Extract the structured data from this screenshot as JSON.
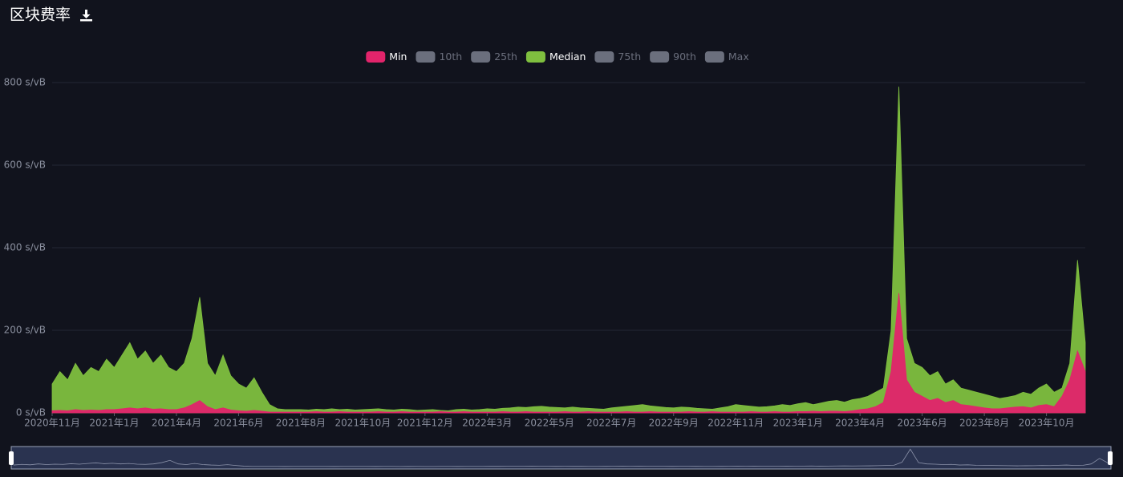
{
  "chart_data": {
    "type": "area",
    "title": "区块费率",
    "categories": [
      "2020年11月",
      null,
      null,
      null,
      null,
      null,
      null,
      null,
      "2021年1月",
      null,
      null,
      null,
      null,
      null,
      null,
      null,
      "2021年4月",
      null,
      null,
      null,
      null,
      null,
      null,
      null,
      "2021年6月",
      null,
      null,
      null,
      null,
      null,
      null,
      null,
      "2021年8月",
      null,
      null,
      null,
      null,
      null,
      null,
      null,
      "2021年10月",
      null,
      null,
      null,
      null,
      null,
      null,
      null,
      "2021年12月",
      null,
      null,
      null,
      null,
      null,
      null,
      null,
      "2022年3月",
      null,
      null,
      null,
      null,
      null,
      null,
      null,
      "2022年5月",
      null,
      null,
      null,
      null,
      null,
      null,
      null,
      "2022年7月",
      null,
      null,
      null,
      null,
      null,
      null,
      null,
      "2022年9月",
      null,
      null,
      null,
      null,
      null,
      null,
      null,
      "2022年11月",
      null,
      null,
      null,
      null,
      null,
      null,
      null,
      "2023年1月",
      null,
      null,
      null,
      null,
      null,
      null,
      null,
      "2023年4月",
      null,
      null,
      null,
      null,
      null,
      null,
      null,
      "2023年6月",
      null,
      null,
      null,
      null,
      null,
      null,
      null,
      "2023年8月",
      null,
      null,
      null,
      null,
      null,
      null,
      null,
      "2023年10月",
      null,
      null,
      null,
      null,
      null
    ],
    "series": [
      {
        "name": "Min",
        "color": "#e2246b",
        "active": true,
        "values": [
          5,
          6,
          5,
          8,
          6,
          7,
          6,
          8,
          8,
          10,
          12,
          10,
          12,
          9,
          10,
          8,
          8,
          12,
          20,
          30,
          15,
          8,
          12,
          7,
          5,
          4,
          6,
          4,
          2,
          2,
          2,
          2,
          2,
          2,
          3,
          2,
          2,
          3,
          2,
          2,
          2,
          2,
          3,
          2,
          2,
          3,
          2,
          2,
          2,
          2,
          3,
          2,
          2,
          3,
          2,
          2,
          2,
          2,
          3,
          2,
          2,
          3,
          2,
          2,
          2,
          2,
          3,
          2,
          2,
          3,
          2,
          2,
          2,
          2,
          3,
          2,
          2,
          3,
          2,
          2,
          2,
          2,
          3,
          2,
          2,
          3,
          2,
          2,
          2,
          2,
          3,
          2,
          2,
          3,
          2,
          2,
          3,
          3,
          4,
          3,
          4,
          4,
          3,
          5,
          8,
          10,
          15,
          25,
          100,
          290,
          80,
          50,
          40,
          30,
          35,
          25,
          30,
          20,
          18,
          15,
          12,
          10,
          10,
          12,
          14,
          15,
          12,
          18,
          20,
          15,
          40,
          80,
          150,
          100
        ]
      },
      {
        "name": "10th",
        "color": "#6b6f7d",
        "active": false
      },
      {
        "name": "25th",
        "color": "#6b6f7d",
        "active": false
      },
      {
        "name": "Median",
        "color": "#7fbf3f",
        "active": true,
        "values": [
          70,
          100,
          80,
          120,
          90,
          110,
          100,
          130,
          110,
          140,
          170,
          130,
          150,
          120,
          140,
          110,
          100,
          120,
          180,
          280,
          120,
          90,
          140,
          90,
          70,
          60,
          85,
          50,
          20,
          10,
          8,
          8,
          8,
          7,
          9,
          8,
          10,
          8,
          9,
          7,
          8,
          9,
          10,
          8,
          7,
          9,
          8,
          6,
          7,
          8,
          6,
          5,
          8,
          9,
          7,
          8,
          10,
          9,
          11,
          12,
          14,
          13,
          15,
          16,
          14,
          13,
          12,
          14,
          12,
          11,
          10,
          9,
          12,
          14,
          16,
          18,
          20,
          17,
          15,
          13,
          12,
          14,
          13,
          11,
          10,
          9,
          12,
          15,
          20,
          18,
          16,
          14,
          15,
          17,
          20,
          18,
          22,
          25,
          20,
          24,
          28,
          30,
          26,
          32,
          35,
          40,
          50,
          60,
          200,
          790,
          180,
          120,
          110,
          90,
          100,
          70,
          80,
          60,
          55,
          50,
          45,
          40,
          35,
          38,
          42,
          50,
          45,
          60,
          70,
          50,
          60,
          120,
          370,
          170
        ]
      },
      {
        "name": "75th",
        "color": "#6b6f7d",
        "active": false
      },
      {
        "name": "90th",
        "color": "#6b6f7d",
        "active": false
      },
      {
        "name": "Max",
        "color": "#6b6f7d",
        "active": false
      }
    ],
    "ylim": [
      0,
      800
    ],
    "yticks": [
      {
        "value": 0,
        "label": "0 s/vB"
      },
      {
        "value": 200,
        "label": "200 s/vB"
      },
      {
        "value": 400,
        "label": "400 s/vB"
      },
      {
        "value": 600,
        "label": "600 s/vB"
      },
      {
        "value": 800,
        "label": "800 s/vB"
      }
    ],
    "grid": true,
    "legend": "top"
  }
}
